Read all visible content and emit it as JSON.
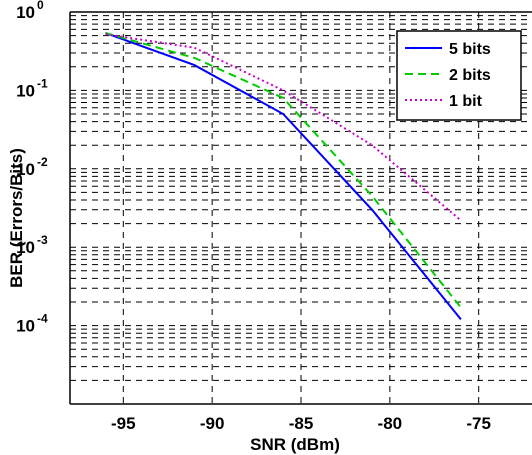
{
  "chart_data": {
    "type": "line",
    "title": "",
    "xlabel": "SNR (dBm)",
    "ylabel": "BER (Errors/Bits)",
    "xlim": [
      -98,
      -72
    ],
    "ylim": [
      1e-05,
      1
    ],
    "y_scale": "log",
    "grid": "major and minor, dashed",
    "legend_placement": "top-right",
    "x_ticks": [
      "-95",
      "-90",
      "-85",
      "-80",
      "-75"
    ],
    "x_tick_values": [
      -95,
      -90,
      -85,
      -80,
      -75
    ],
    "y_ticks": [
      {
        "base": "10",
        "exp": "0",
        "value": 1
      },
      {
        "base": "10",
        "exp": "-1",
        "value": 0.1
      },
      {
        "base": "10",
        "exp": "-2",
        "value": 0.01
      },
      {
        "base": "10",
        "exp": "-3",
        "value": 0.001
      },
      {
        "base": "10",
        "exp": "-4",
        "value": 0.0001
      }
    ],
    "series": [
      {
        "name": "5 bits",
        "color": "#0000ff",
        "style": "solid",
        "points": [
          [
            -96,
            0.54
          ],
          [
            -91,
            0.21
          ],
          [
            -86,
            0.05
          ],
          [
            -81,
            0.003
          ],
          [
            -76,
            0.00012
          ]
        ]
      },
      {
        "name": "2 bits",
        "color": "#00cc00",
        "style": "dashed",
        "points": [
          [
            -96,
            0.54
          ],
          [
            -91,
            0.26
          ],
          [
            -86,
            0.08
          ],
          [
            -81,
            0.0045
          ],
          [
            -76,
            0.00017
          ]
        ]
      },
      {
        "name": "1 bit",
        "color": "#cc00cc",
        "style": "dotted",
        "points": [
          [
            -96,
            0.52
          ],
          [
            -91,
            0.35
          ],
          [
            -86,
            0.1
          ],
          [
            -81,
            0.02
          ],
          [
            -76,
            0.0022
          ]
        ]
      }
    ]
  }
}
